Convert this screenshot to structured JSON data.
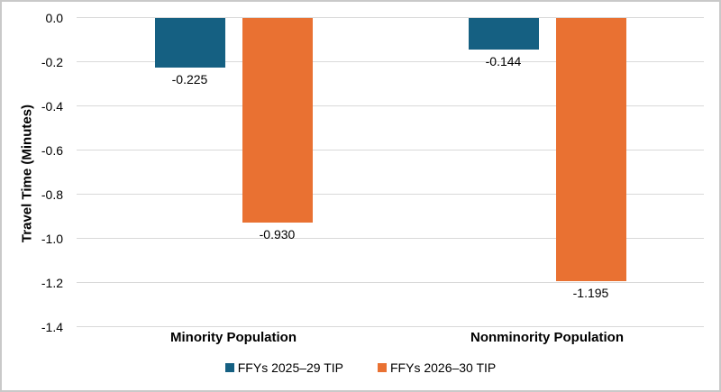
{
  "frame": {
    "background": "#ffffff",
    "border_color": "#c9c9c9"
  },
  "chart_data": {
    "type": "bar",
    "title": "",
    "xlabel": "",
    "ylabel": "Travel Time (Minutes)",
    "categories": [
      "Minority Population",
      "Nonminority Population"
    ],
    "series": [
      {
        "name": "FFYs 2025–29 TIP",
        "color": "#156082",
        "values": [
          -0.225,
          -0.144
        ],
        "labels": [
          "-0.225",
          "-0.144"
        ]
      },
      {
        "name": "FFYs 2026–30 TIP",
        "color": "#E97132",
        "values": [
          -0.93,
          -1.195
        ],
        "labels": [
          "-0.930",
          "-1.195"
        ]
      }
    ],
    "ylim": [
      -1.4,
      0.0
    ],
    "yticks": [
      0.0,
      -0.2,
      -0.4,
      -0.6,
      -0.8,
      -1.0,
      -1.2,
      -1.4
    ],
    "ytick_labels": [
      "0.0",
      "-0.2",
      "-0.4",
      "-0.6",
      "-0.8",
      "-1.0",
      "-1.2",
      "-1.4"
    ],
    "grid": true,
    "gridline_color": "#d9d9d9",
    "legend_position": "bottom",
    "bar_label_position": "below-bar"
  }
}
